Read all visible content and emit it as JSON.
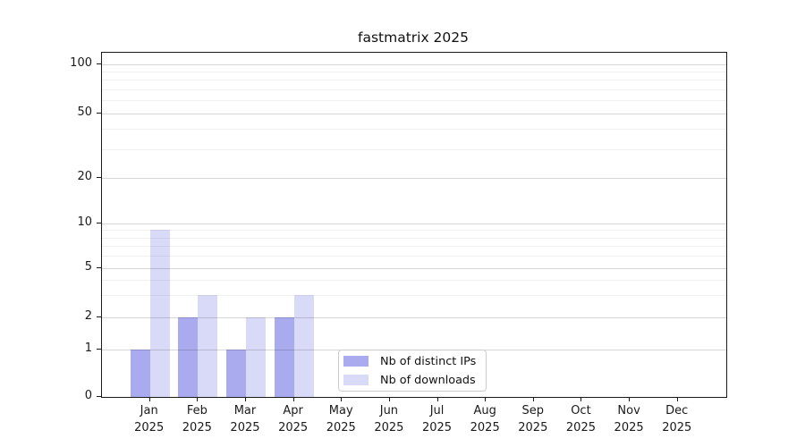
{
  "chart_data": {
    "type": "bar",
    "title": "fastmatrix 2025",
    "categories": [
      "Jan 2025",
      "Feb 2025",
      "Mar 2025",
      "Apr 2025",
      "May 2025",
      "Jun 2025",
      "Jul 2025",
      "Aug 2025",
      "Sep 2025",
      "Oct 2025",
      "Nov 2025",
      "Dec 2025"
    ],
    "x_axis": {
      "months": [
        "Jan",
        "Feb",
        "Mar",
        "Apr",
        "May",
        "Jun",
        "Jul",
        "Aug",
        "Sep",
        "Oct",
        "Nov",
        "Dec"
      ],
      "year": "2025"
    },
    "y_axis": {
      "scale": "symlog",
      "major_ticks": [
        0,
        1,
        2,
        5,
        10,
        20,
        50,
        100
      ],
      "minor_ticks": [
        3,
        4,
        6,
        7,
        8,
        9,
        30,
        40,
        60,
        70,
        80,
        90
      ],
      "ylim": [
        0,
        115
      ]
    },
    "series": [
      {
        "name": "Nb of distinct IPs",
        "slug": "distinct-ips",
        "color": "#aaaaee",
        "values": [
          1,
          2,
          1,
          2,
          0,
          0,
          0,
          0,
          0,
          0,
          0,
          0
        ]
      },
      {
        "name": "Nb of downloads",
        "slug": "downloads",
        "color": "#d9d9f8",
        "values": [
          9,
          3,
          2,
          3,
          0,
          0,
          0,
          0,
          0,
          0,
          0,
          0
        ]
      }
    ],
    "legend": {
      "entries": [
        "Nb of distinct IPs",
        "Nb of downloads"
      ],
      "position": "bottom-center"
    },
    "grid": true
  }
}
